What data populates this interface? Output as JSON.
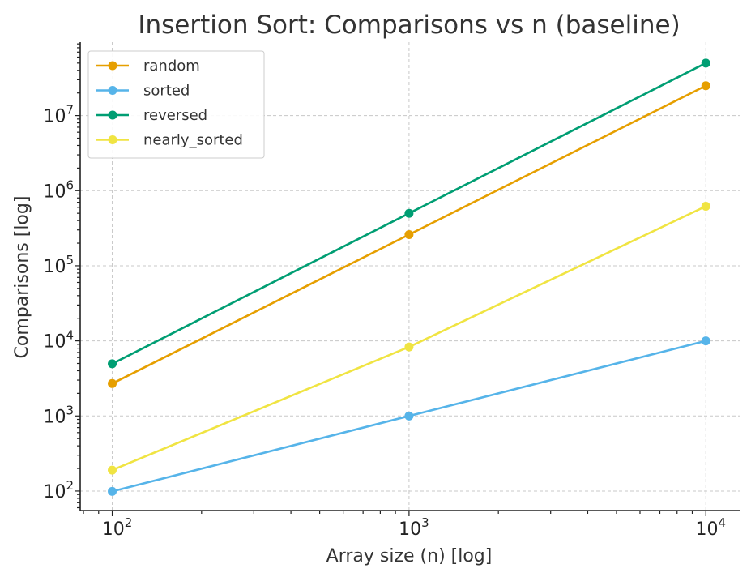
{
  "chart_data": {
    "type": "line",
    "title": "Insertion Sort: Comparisons vs n (baseline)",
    "xlabel": "Array size (n) [log]",
    "ylabel": "Comparisons [log]",
    "xscale": "log",
    "yscale": "log",
    "x": [
      100,
      1000,
      10000
    ],
    "xlim": [
      78,
      13000
    ],
    "ylim": [
      55,
      95000000
    ],
    "x_ticks": [
      {
        "value": 100,
        "base": "10",
        "exp": "2"
      },
      {
        "value": 1000,
        "base": "10",
        "exp": "3"
      },
      {
        "value": 10000,
        "base": "10",
        "exp": "4"
      }
    ],
    "y_ticks": [
      {
        "value": 100,
        "base": "10",
        "exp": "2"
      },
      {
        "value": 1000,
        "base": "10",
        "exp": "3"
      },
      {
        "value": 10000,
        "base": "10",
        "exp": "4"
      },
      {
        "value": 100000,
        "base": "10",
        "exp": "5"
      },
      {
        "value": 1000000,
        "base": "10",
        "exp": "6"
      },
      {
        "value": 10000000,
        "base": "10",
        "exp": "7"
      }
    ],
    "grid": true,
    "legend_position": "top-left",
    "series": [
      {
        "name": "random",
        "color": "#E69F00",
        "values": [
          2700,
          260000,
          25000000
        ]
      },
      {
        "name": "sorted",
        "color": "#56B4E9",
        "values": [
          99,
          999,
          9999
        ]
      },
      {
        "name": "reversed",
        "color": "#009E73",
        "values": [
          4950,
          499500,
          49995000
        ]
      },
      {
        "name": "nearly_sorted",
        "color": "#F0E442",
        "values": [
          190,
          8300,
          620000
        ]
      }
    ]
  }
}
